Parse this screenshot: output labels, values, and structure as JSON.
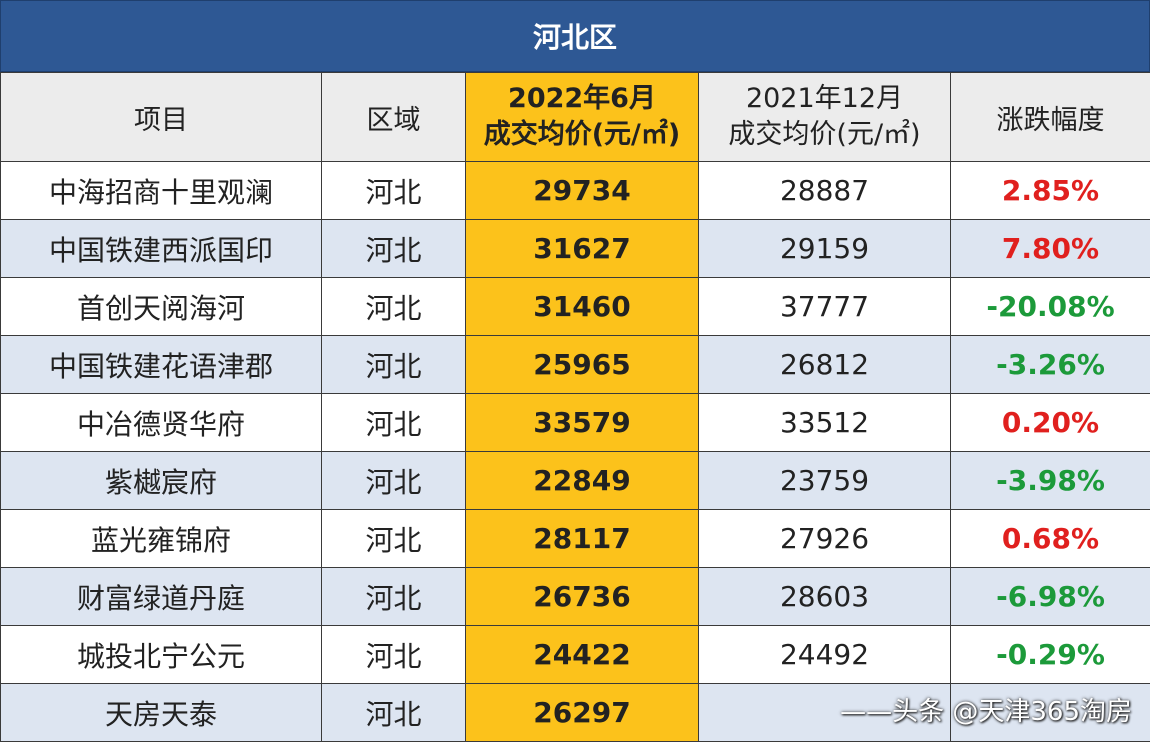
{
  "title": "河北区",
  "headers": {
    "project": "项目",
    "area": "区域",
    "col_2022_line1": "2022年6月",
    "col_2022_line2": "成交均价(元/㎡)",
    "col_2021_line1": "2021年12月",
    "col_2021_line2": "成交均价(元/㎡)",
    "change": "涨跌幅度"
  },
  "rows": [
    {
      "project": "中海招商十里观澜",
      "area": "河北",
      "price_2022": "29734",
      "price_2021": "28887",
      "change": "2.85%",
      "direction": "up"
    },
    {
      "project": "中国铁建西派国印",
      "area": "河北",
      "price_2022": "31627",
      "price_2021": "29159",
      "change": "7.80%",
      "direction": "up"
    },
    {
      "project": "首创天阅海河",
      "area": "河北",
      "price_2022": "31460",
      "price_2021": "37777",
      "change": "-20.08%",
      "direction": "down"
    },
    {
      "project": "中国铁建花语津郡",
      "area": "河北",
      "price_2022": "25965",
      "price_2021": "26812",
      "change": "-3.26%",
      "direction": "down"
    },
    {
      "project": "中冶德贤华府",
      "area": "河北",
      "price_2022": "33579",
      "price_2021": "33512",
      "change": "0.20%",
      "direction": "up"
    },
    {
      "project": "紫樾宸府",
      "area": "河北",
      "price_2022": "22849",
      "price_2021": "23759",
      "change": "-3.98%",
      "direction": "down"
    },
    {
      "project": "蓝光雍锦府",
      "area": "河北",
      "price_2022": "28117",
      "price_2021": "27926",
      "change": "0.68%",
      "direction": "up"
    },
    {
      "project": "财富绿道丹庭",
      "area": "河北",
      "price_2022": "26736",
      "price_2021": "28603",
      "change": "-6.98%",
      "direction": "down"
    },
    {
      "project": "城投北宁公元",
      "area": "河北",
      "price_2022": "24422",
      "price_2021": "24492",
      "change": "-0.29%",
      "direction": "down"
    },
    {
      "project": "天房天泰",
      "area": "河北",
      "price_2022": "26297",
      "price_2021": "",
      "change": "",
      "direction": ""
    }
  ],
  "watermark": "——头条 @天津365淘房",
  "colors": {
    "title_bg": "#2e5894",
    "highlight": "#fcc21b",
    "up": "#e0201e",
    "down": "#1c9a3a",
    "alt_row": "#dde5f1"
  }
}
